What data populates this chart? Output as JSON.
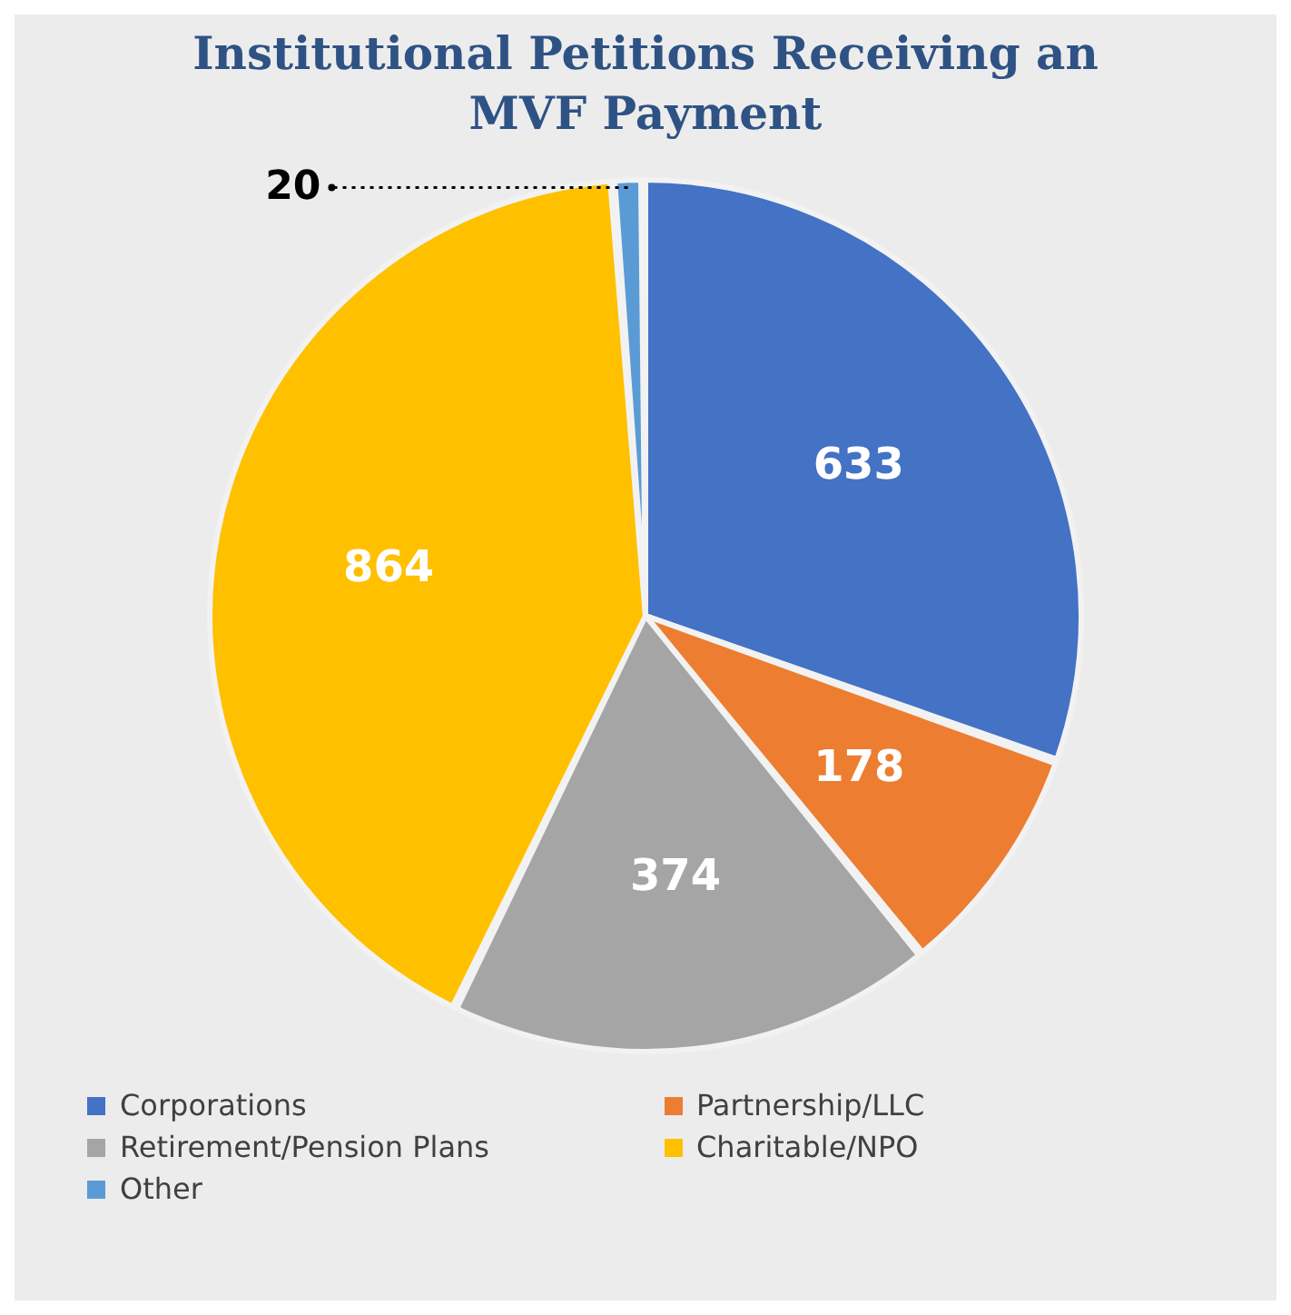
{
  "chart_data": {
    "type": "pie",
    "title": "Institutional Petitions Receiving an MVF Payment",
    "categories": [
      "Corporations",
      "Partnership/LLC",
      "Retirement/Pension Plans",
      "Charitable/NPO",
      "Other"
    ],
    "values": [
      633,
      178,
      374,
      864,
      20
    ],
    "colors": [
      "#4472c4",
      "#ed7d31",
      "#a5a5a5",
      "#ffc000",
      "#5b9bd5"
    ],
    "data_labels": true,
    "legend": "bottom"
  }
}
